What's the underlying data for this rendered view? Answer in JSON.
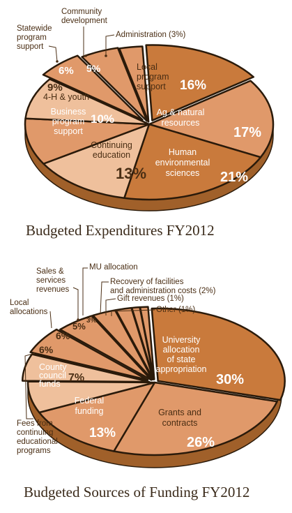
{
  "chart_data": [
    {
      "type": "pie",
      "title": "Budgeted Expenditures FY2012",
      "slices": [
        {
          "name": "Local program support",
          "value": 16
        },
        {
          "name": "Ag & natural resources",
          "value": 17
        },
        {
          "name": "Human environmental sciences",
          "value": 21
        },
        {
          "name": "Continuing education",
          "value": 13
        },
        {
          "name": "Business program support",
          "value": 10
        },
        {
          "name": "4-H & youth",
          "value": 9
        },
        {
          "name": "Statewide program support",
          "value": 6
        },
        {
          "name": "Community development",
          "value": 5
        },
        {
          "name": "Administration (3%)",
          "value": 3
        }
      ],
      "pct_labels": [
        "16%",
        "17%",
        "21%",
        "13%",
        "10%",
        "9%",
        "6%",
        "5%"
      ],
      "label_lines": {
        "local": [
          "Local",
          "program",
          "support"
        ],
        "ag": [
          "Ag & natural",
          "resources"
        ],
        "human": [
          "Human",
          "environmental",
          "sciences"
        ],
        "continuing": [
          "Continuing",
          "education"
        ],
        "business": [
          "Business",
          "program",
          "support"
        ],
        "youth": [
          "4-H & youth"
        ],
        "statewide": [
          "Statewide",
          "program",
          "support"
        ],
        "community": [
          "Community",
          "development"
        ],
        "admin": [
          "Administration (3%)"
        ]
      }
    },
    {
      "type": "pie",
      "title": "Budgeted Sources of Funding FY2012",
      "slices": [
        {
          "name": "University allocation of state appropriation",
          "value": 30
        },
        {
          "name": "Grants and contracts",
          "value": 26
        },
        {
          "name": "Federal funding",
          "value": 13
        },
        {
          "name": "County council funds",
          "value": 7
        },
        {
          "name": "Fees from continuing educational programs",
          "value": 6
        },
        {
          "name": "Local allocations",
          "value": 6
        },
        {
          "name": "Sales & services revenues",
          "value": 5
        },
        {
          "name": "MU allocation",
          "value": 3
        },
        {
          "name": "Recovery of facilities and administration costs (2%)",
          "value": 2
        },
        {
          "name": "Gift revenues (1%)",
          "value": 1
        },
        {
          "name": "Other (1%)",
          "value": 1
        }
      ],
      "pct_labels": [
        "30%",
        "26%",
        "13%",
        "7%",
        "6%",
        "6%",
        "5%",
        "3%"
      ],
      "label_lines": {
        "university": [
          "University",
          "allocation",
          "of state",
          "appropriation"
        ],
        "grants": [
          "Grants and",
          "contracts"
        ],
        "federal": [
          "Federal",
          "funding"
        ],
        "county": [
          "County",
          "council",
          "funds"
        ],
        "fees": [
          "Fees from",
          "continuing",
          "educational",
          "programs"
        ],
        "local": [
          "Local",
          "allocations"
        ],
        "sales": [
          "Sales &",
          "services",
          "revenues"
        ],
        "mu": [
          "MU allocation"
        ],
        "recovery": [
          "Recovery of facilities",
          "and administration costs (2%)"
        ],
        "gift": [
          "Gift revenues (1%)"
        ],
        "other": [
          "Other (1%)"
        ]
      }
    }
  ],
  "colors": {
    "dark": "#c97a3c",
    "medium": "#e0996a",
    "light": "#efc09c",
    "pale": "#f6dcc4",
    "side": "#a0602a",
    "outline": "#2a1a0a",
    "text": "#4a2e14"
  }
}
